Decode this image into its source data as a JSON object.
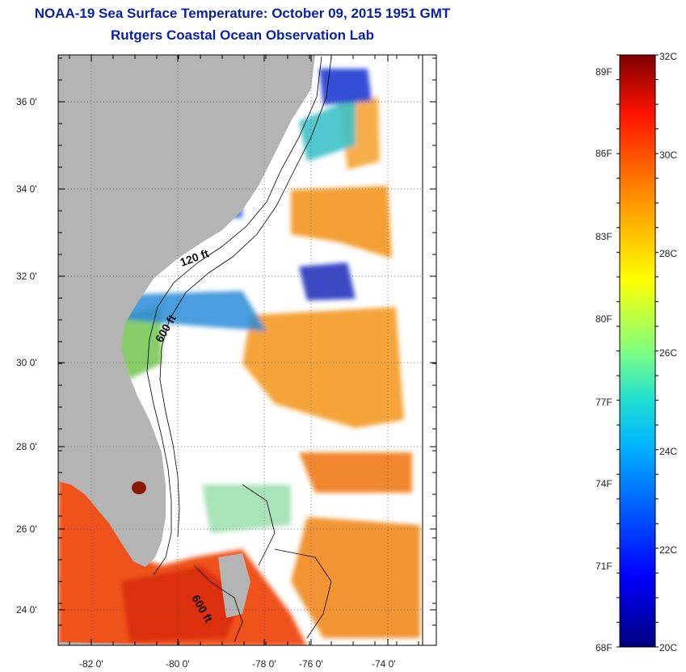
{
  "title": "NOAA-19 Sea Surface Temperature:  October 09, 2015 1951 GMT",
  "subtitle": "Rutgers Coastal Ocean Observation Lab",
  "map": {
    "lat_ticks": [
      "36 0'",
      "34 0'",
      "32 0'",
      "30 0'",
      "28 0'",
      "26 0'",
      "24 0'"
    ],
    "lon_ticks": [
      "-82 0'",
      "-80 0'",
      "-78 0'",
      "-76 0'",
      "-74 0'"
    ],
    "annotations": [
      "120 ft",
      "600 ft",
      "600 ft"
    ],
    "colors": {
      "land": "#b4b4b4",
      "no_data": "#ffffff",
      "contour": "#000000"
    }
  },
  "colorbar": {
    "fahrenheit_labels": [
      "89F",
      "86F",
      "83F",
      "80F",
      "77F",
      "74F",
      "71F",
      "68F"
    ],
    "celsius_labels": [
      "32C",
      "30C",
      "28C",
      "26C",
      "24C",
      "22C",
      "20C"
    ],
    "range_c": [
      20,
      32
    ],
    "colormap": "jet"
  }
}
